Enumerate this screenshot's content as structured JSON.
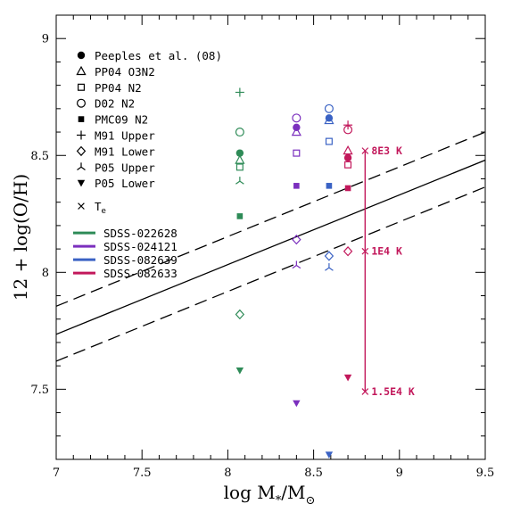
{
  "chart_data": {
    "type": "scatter",
    "title": "",
    "xlabel": "log M",
    "xlabel_sub": "*",
    "xlabel_tail": "/M",
    "xlabel_sun": "⊙",
    "ylabel": "12 + log(O/H)",
    "xlim": [
      7,
      9.5
    ],
    "ylim": [
      7.2,
      9.1
    ],
    "x_ticks": [
      7,
      7.5,
      8,
      8.5,
      9,
      9.5
    ],
    "x_tick_labels": [
      "7",
      "7.5",
      "8",
      "8.5",
      "9",
      "9.5"
    ],
    "y_ticks": [
      7.5,
      8,
      8.5,
      9
    ],
    "y_tick_labels": [
      "7.5",
      "8",
      "8.5",
      "9"
    ],
    "grid": false,
    "legend_position": "top-left",
    "relation": {
      "name": "Peeples et al. (08)",
      "solid": [
        [
          7,
          7.735
        ],
        [
          9.5,
          8.48
        ]
      ],
      "dashed_upper": [
        [
          7,
          7.855
        ],
        [
          9.5,
          8.6
        ]
      ],
      "dashed_lower": [
        [
          7,
          7.62
        ],
        [
          9.5,
          8.365
        ]
      ]
    },
    "marker_legend": [
      {
        "symbol": "filled-circle",
        "label": "Peeples et al. (08)"
      },
      {
        "symbol": "open-triangle",
        "label": "PP04 O3N2"
      },
      {
        "symbol": "open-square",
        "label": "PP04 N2"
      },
      {
        "symbol": "open-circle",
        "label": "D02 N2"
      },
      {
        "symbol": "filled-square",
        "label": "PMC09 N2"
      },
      {
        "symbol": "plus",
        "label": "M91 Upper"
      },
      {
        "symbol": "open-diamond",
        "label": "M91 Lower"
      },
      {
        "symbol": "tripod",
        "label": "P05 Upper"
      },
      {
        "symbol": "filled-triangle-down",
        "label": "P05 Lower"
      }
    ],
    "te_legend": {
      "symbol": "cross",
      "label": "T",
      "sub": "e"
    },
    "series": [
      {
        "name": "SDSS-022628",
        "color": "#2e8b57",
        "points": [
          {
            "symbol": "plus",
            "x": 8.07,
            "y": 8.77
          },
          {
            "symbol": "open-circle",
            "x": 8.07,
            "y": 8.6
          },
          {
            "symbol": "filled-circle",
            "x": 8.07,
            "y": 8.51
          },
          {
            "symbol": "open-triangle",
            "x": 8.07,
            "y": 8.48
          },
          {
            "symbol": "open-square",
            "x": 8.07,
            "y": 8.45
          },
          {
            "symbol": "tripod",
            "x": 8.07,
            "y": 8.39
          },
          {
            "symbol": "filled-square",
            "x": 8.07,
            "y": 8.24
          },
          {
            "symbol": "open-diamond",
            "x": 8.07,
            "y": 7.82
          },
          {
            "symbol": "filled-triangle-down",
            "x": 8.07,
            "y": 7.58
          }
        ]
      },
      {
        "name": "SDSS-024121",
        "color": "#7b2fbe",
        "points": [
          {
            "symbol": "open-circle",
            "x": 8.4,
            "y": 8.66
          },
          {
            "symbol": "filled-circle",
            "x": 8.4,
            "y": 8.62
          },
          {
            "symbol": "open-triangle",
            "x": 8.4,
            "y": 8.6
          },
          {
            "symbol": "open-square",
            "x": 8.4,
            "y": 8.51
          },
          {
            "symbol": "filled-square",
            "x": 8.4,
            "y": 8.37
          },
          {
            "symbol": "open-diamond",
            "x": 8.4,
            "y": 8.14
          },
          {
            "symbol": "tripod",
            "x": 8.4,
            "y": 8.03
          },
          {
            "symbol": "filled-triangle-down",
            "x": 8.4,
            "y": 7.44
          }
        ]
      },
      {
        "name": "SDSS-082639",
        "color": "#3a62c4",
        "points": [
          {
            "symbol": "open-circle",
            "x": 8.59,
            "y": 8.7
          },
          {
            "symbol": "filled-circle",
            "x": 8.59,
            "y": 8.66
          },
          {
            "symbol": "open-triangle",
            "x": 8.59,
            "y": 8.65
          },
          {
            "symbol": "open-square",
            "x": 8.59,
            "y": 8.56
          },
          {
            "symbol": "filled-square",
            "x": 8.59,
            "y": 8.37
          },
          {
            "symbol": "open-diamond",
            "x": 8.59,
            "y": 8.07
          },
          {
            "symbol": "tripod",
            "x": 8.59,
            "y": 8.02
          },
          {
            "symbol": "filled-triangle-down",
            "x": 8.59,
            "y": 7.22
          }
        ]
      },
      {
        "name": "SDSS-082633",
        "color": "#c2185b",
        "points": [
          {
            "symbol": "plus",
            "x": 8.7,
            "y": 8.63
          },
          {
            "symbol": "open-circle",
            "x": 8.7,
            "y": 8.61
          },
          {
            "symbol": "open-triangle",
            "x": 8.7,
            "y": 8.52
          },
          {
            "symbol": "filled-circle",
            "x": 8.7,
            "y": 8.49
          },
          {
            "symbol": "open-square",
            "x": 8.7,
            "y": 8.46
          },
          {
            "symbol": "filled-square",
            "x": 8.7,
            "y": 8.36
          },
          {
            "symbol": "open-diamond",
            "x": 8.7,
            "y": 8.09
          },
          {
            "symbol": "filled-triangle-down",
            "x": 8.7,
            "y": 7.55
          }
        ]
      }
    ],
    "te_estimates": {
      "color": "#c2185b",
      "x": 8.8,
      "y_range": [
        7.49,
        8.52
      ],
      "points": [
        {
          "y": 8.52,
          "label": "8E3 K"
        },
        {
          "y": 8.09,
          "label": "1E4 K"
        },
        {
          "y": 7.49,
          "label": "1.5E4 K"
        }
      ]
    }
  }
}
